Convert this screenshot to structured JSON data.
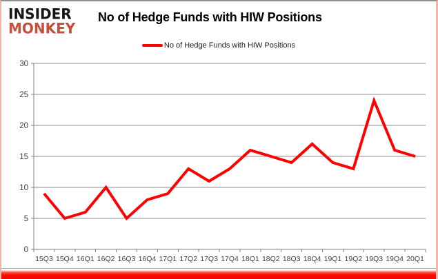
{
  "logo": {
    "line1": "INSIDER",
    "line2": "MONKEY"
  },
  "header": {
    "title": "No of Hedge Funds with HIW Positions"
  },
  "legend": {
    "label": "No of Hedge Funds with HIW Positions"
  },
  "chart_data": {
    "type": "line",
    "title": "No of Hedge Funds with HIW Positions",
    "categories": [
      "15Q3",
      "15Q4",
      "16Q1",
      "16Q2",
      "16Q3",
      "16Q4",
      "17Q1",
      "17Q2",
      "17Q3",
      "17Q4",
      "18Q1",
      "18Q2",
      "18Q3",
      "18Q4",
      "19Q1",
      "19Q2",
      "19Q3",
      "19Q4",
      "20Q1"
    ],
    "series": [
      {
        "name": "No of Hedge Funds with HIW Positions",
        "values": [
          9,
          5,
          6,
          10,
          5,
          8,
          9,
          13,
          11,
          13,
          16,
          15,
          14,
          17,
          14,
          13,
          24,
          16,
          15
        ],
        "color": "#fe0000"
      }
    ],
    "xlabel": "",
    "ylabel": "",
    "ylim": [
      0,
      30
    ],
    "yticks": [
      0,
      5,
      10,
      15,
      20,
      25,
      30
    ],
    "grid": true,
    "legend_position": "top-center"
  },
  "colors": {
    "line": "#fe0000",
    "gridline": "#8c8c8c",
    "axis_line": "#7f7f7f",
    "axis_text": "#3f3f3f",
    "logo_primary": "#161414",
    "logo_accent": "#c7503a",
    "bottom_bar": "#fa0f07"
  }
}
